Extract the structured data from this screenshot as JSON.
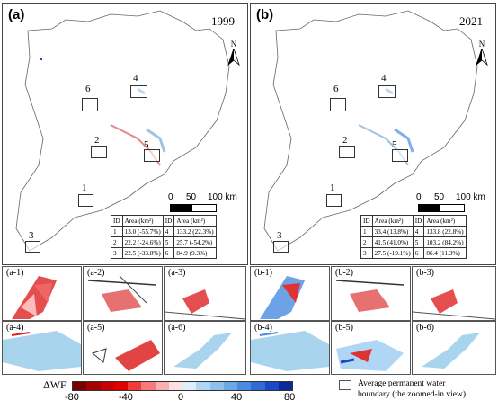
{
  "panels": [
    {
      "label": "(a)",
      "year": "1999",
      "roi_ids": [
        "1",
        "2",
        "3",
        "4",
        "5",
        "6"
      ],
      "scale": {
        "zero": "0",
        "mid": "50",
        "end": "100 km"
      },
      "north": "N",
      "table": {
        "headers": [
          "ID",
          "Area (km²)",
          "ID",
          "Area (km²)"
        ],
        "rows": [
          [
            "1",
            "13.0 (-55.7%)",
            "4",
            "133.2 (22.3%)"
          ],
          [
            "2",
            "22.2 (-24.6%)",
            "5",
            "25.7 (-54.2%)"
          ],
          [
            "3",
            "22.5 (-33.8%)",
            "6",
            "84.9 (9.3%)"
          ]
        ]
      }
    },
    {
      "label": "(b)",
      "year": "2021",
      "roi_ids": [
        "1",
        "2",
        "3",
        "4",
        "5",
        "6"
      ],
      "scale": {
        "zero": "0",
        "mid": "50",
        "end": "100 km"
      },
      "north": "N",
      "table": {
        "headers": [
          "ID",
          "Area (km²)",
          "ID",
          "Area (km²)"
        ],
        "rows": [
          [
            "1",
            "33.4 (13.8%)",
            "4",
            "133.8 (22.8%)"
          ],
          [
            "2",
            "41.5 (41.0%)",
            "5",
            "103.2 (84.2%)"
          ],
          [
            "3",
            "27.5 (-19.1%)",
            "6",
            "86.4 (11.3%)"
          ]
        ]
      }
    }
  ],
  "zooms_a": [
    "(a-1)",
    "(a-2)",
    "(a-3)",
    "(a-4)",
    "(a-5)",
    "(a-6)"
  ],
  "zooms_b": [
    "(b-1)",
    "(b-2)",
    "(b-3)",
    "(b-4)",
    "(b-5)",
    "(b-6)"
  ],
  "legend": {
    "title": "ΔWF",
    "ticks": [
      "-80",
      "-40",
      "0",
      "40",
      "80"
    ],
    "colors": [
      "#7a0000",
      "#a30000",
      "#c80000",
      "#e00000",
      "#f23a3a",
      "#f77a7a",
      "#fab0b0",
      "#fde0e0",
      "#dcefff",
      "#b0d6f5",
      "#8cc0ee",
      "#6aa8e8",
      "#4a8be0",
      "#2f6ad6",
      "#1b48c4",
      "#0a2a99"
    ],
    "box_text_line1": "Average permanent water",
    "box_text_line2": "boundary (the zoomed-in view)"
  }
}
